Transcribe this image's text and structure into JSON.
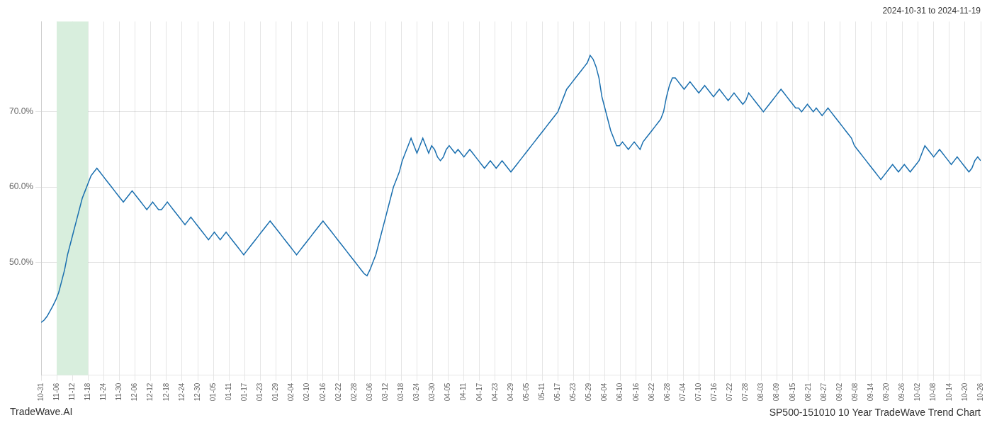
{
  "chart_data": {
    "type": "line",
    "title": "SP500-151010 10 Year TradeWave Trend Chart",
    "subtitle": "2024-10-31 to 2024-11-19",
    "annotations": [
      "TradeWave.AI"
    ],
    "color": "#1a6faf",
    "grid": true,
    "x": [
      0,
      1,
      2,
      3,
      4,
      5,
      6,
      7,
      8,
      9,
      10,
      11,
      12,
      13,
      14,
      15,
      16,
      17,
      18,
      19,
      20,
      21,
      22,
      23,
      24,
      25,
      26,
      27,
      28,
      29,
      30,
      31,
      32,
      33,
      34,
      35,
      36,
      37,
      38,
      39,
      40,
      41,
      42,
      43,
      44,
      45,
      46,
      47,
      48,
      49,
      50,
      51,
      52,
      53,
      54,
      55,
      56,
      57,
      58,
      59,
      60,
      61,
      62,
      63,
      64,
      65,
      66,
      67,
      68,
      69,
      70,
      71,
      72,
      73,
      74,
      75,
      76,
      77,
      78,
      79,
      80,
      81,
      82,
      83,
      84,
      85,
      86,
      87,
      88,
      89,
      90,
      91,
      92,
      93,
      94,
      95,
      96,
      97,
      98,
      99,
      100,
      101,
      102,
      103,
      104,
      105,
      106,
      107,
      108,
      109,
      110,
      111,
      112,
      113,
      114,
      115,
      116,
      117,
      118,
      119,
      120,
      121,
      122,
      123,
      124,
      125,
      126,
      127,
      128,
      129,
      130,
      131,
      132,
      133,
      134,
      135,
      136,
      137,
      138,
      139,
      140,
      141,
      142,
      143,
      144,
      145,
      146,
      147,
      148,
      149,
      150,
      151,
      152,
      153,
      154,
      155,
      156,
      157,
      158,
      159,
      160,
      161,
      162,
      163,
      164,
      165,
      166,
      167,
      168,
      169,
      170,
      171,
      172,
      173,
      174,
      175,
      176,
      177,
      178,
      179,
      180,
      181,
      182,
      183,
      184,
      185,
      186,
      187,
      188,
      189,
      190,
      191,
      192,
      193,
      194,
      195,
      196,
      197,
      198,
      199,
      200,
      201,
      202,
      203,
      204,
      205,
      206,
      207,
      208,
      209,
      210,
      211,
      212,
      213,
      214,
      215,
      216,
      217,
      218,
      219,
      220,
      221,
      222,
      223,
      224,
      225,
      226,
      227,
      228,
      229,
      230,
      231,
      232,
      233,
      234,
      235,
      236,
      237,
      238,
      239,
      240,
      241,
      242,
      243,
      244,
      245,
      246,
      247,
      248,
      249,
      250,
      251,
      252,
      253,
      254,
      255,
      256,
      257,
      258,
      259,
      260,
      261,
      262,
      263,
      264,
      265,
      266,
      267,
      268,
      269,
      270,
      271,
      272,
      273,
      274,
      275,
      276,
      277,
      278,
      279,
      280,
      281,
      282,
      283,
      284,
      285,
      286,
      287,
      288,
      289,
      290,
      291,
      292,
      293,
      294,
      295,
      296,
      297,
      298,
      299,
      300,
      301,
      302,
      303,
      304,
      305,
      306,
      307,
      308,
      309,
      310,
      311,
      312,
      313,
      314,
      315,
      316,
      317,
      318,
      319,
      320
    ],
    "values": [
      42.0,
      42.3,
      42.8,
      43.5,
      44.2,
      45.0,
      46.0,
      47.5,
      49.0,
      51.0,
      52.5,
      54.0,
      55.5,
      57.0,
      58.5,
      59.5,
      60.5,
      61.5,
      62.0,
      62.5,
      62.0,
      61.5,
      61.0,
      60.5,
      60.0,
      59.5,
      59.0,
      58.5,
      58.0,
      58.5,
      59.0,
      59.5,
      59.0,
      58.5,
      58.0,
      57.5,
      57.0,
      57.5,
      58.0,
      57.5,
      57.0,
      57.0,
      57.5,
      58.0,
      57.5,
      57.0,
      56.5,
      56.0,
      55.5,
      55.0,
      55.5,
      56.0,
      55.5,
      55.0,
      54.5,
      54.0,
      53.5,
      53.0,
      53.5,
      54.0,
      53.5,
      53.0,
      53.5,
      54.0,
      53.5,
      53.0,
      52.5,
      52.0,
      51.5,
      51.0,
      51.5,
      52.0,
      52.5,
      53.0,
      53.5,
      54.0,
      54.5,
      55.0,
      55.5,
      55.0,
      54.5,
      54.0,
      53.5,
      53.0,
      52.5,
      52.0,
      51.5,
      51.0,
      51.5,
      52.0,
      52.5,
      53.0,
      53.5,
      54.0,
      54.5,
      55.0,
      55.5,
      55.0,
      54.5,
      54.0,
      53.5,
      53.0,
      52.5,
      52.0,
      51.5,
      51.0,
      50.5,
      50.0,
      49.5,
      49.0,
      48.5,
      48.2,
      49.0,
      50.0,
      51.0,
      52.5,
      54.0,
      55.5,
      57.0,
      58.5,
      60.0,
      61.0,
      62.0,
      63.5,
      64.5,
      65.5,
      66.5,
      65.5,
      64.5,
      65.5,
      66.5,
      65.5,
      64.5,
      65.5,
      65.0,
      64.0,
      63.5,
      64.0,
      65.0,
      65.5,
      65.0,
      64.5,
      65.0,
      64.5,
      64.0,
      64.5,
      65.0,
      64.5,
      64.0,
      63.5,
      63.0,
      62.5,
      63.0,
      63.5,
      63.0,
      62.5,
      63.0,
      63.5,
      63.0,
      62.5,
      62.0,
      62.5,
      63.0,
      63.5,
      64.0,
      64.5,
      65.0,
      65.5,
      66.0,
      66.5,
      67.0,
      67.5,
      68.0,
      68.5,
      69.0,
      69.5,
      70.0,
      71.0,
      72.0,
      73.0,
      73.5,
      74.0,
      74.5,
      75.0,
      75.5,
      76.0,
      76.5,
      77.5,
      77.0,
      76.0,
      74.5,
      72.0,
      70.5,
      69.0,
      67.5,
      66.5,
      65.5,
      65.5,
      66.0,
      65.5,
      65.0,
      65.5,
      66.0,
      65.5,
      65.0,
      66.0,
      66.5,
      67.0,
      67.5,
      68.0,
      68.5,
      69.0,
      70.0,
      72.0,
      73.5,
      74.5,
      74.5,
      74.0,
      73.5,
      73.0,
      73.5,
      74.0,
      73.5,
      73.0,
      72.5,
      73.0,
      73.5,
      73.0,
      72.5,
      72.0,
      72.5,
      73.0,
      72.5,
      72.0,
      71.5,
      72.0,
      72.5,
      72.0,
      71.5,
      71.0,
      71.5,
      72.5,
      72.0,
      71.5,
      71.0,
      70.5,
      70.0,
      70.5,
      71.0,
      71.5,
      72.0,
      72.5,
      73.0,
      72.5,
      72.0,
      71.5,
      71.0,
      70.5,
      70.5,
      70.0,
      70.5,
      71.0,
      70.5,
      70.0,
      70.5,
      70.0,
      69.5,
      70.0,
      70.5,
      70.0,
      69.5,
      69.0,
      68.5,
      68.0,
      67.5,
      67.0,
      66.5,
      65.5,
      65.0,
      64.5,
      64.0,
      63.5,
      63.0,
      62.5,
      62.0,
      61.5,
      61.0,
      61.5,
      62.0,
      62.5,
      63.0,
      62.5,
      62.0,
      62.5,
      63.0,
      62.5,
      62.0,
      62.5,
      63.0,
      63.5,
      64.5,
      65.5,
      65.0,
      64.5,
      64.0,
      64.5,
      65.0,
      64.5,
      64.0,
      63.5,
      63.0,
      63.5,
      64.0,
      63.5,
      63.0,
      62.5,
      62.0,
      62.5,
      63.5,
      64.0,
      63.5
    ],
    "xlim": [
      0,
      320
    ],
    "xticks": [
      {
        "value": 0,
        "label": "10-31"
      },
      {
        "value": 5.3333,
        "label": "11-06"
      },
      {
        "value": 10.6667,
        "label": "11-12"
      },
      {
        "value": 16,
        "label": "11-18"
      },
      {
        "value": 21.3333,
        "label": "11-24"
      },
      {
        "value": 26.6667,
        "label": "11-30"
      },
      {
        "value": 32,
        "label": "12-06"
      },
      {
        "value": 37.3333,
        "label": "12-12"
      },
      {
        "value": 42.6667,
        "label": "12-18"
      },
      {
        "value": 48,
        "label": "12-24"
      },
      {
        "value": 53.3333,
        "label": "12-30"
      },
      {
        "value": 58.6667,
        "label": "01-05"
      },
      {
        "value": 64,
        "label": "01-11"
      },
      {
        "value": 69.3333,
        "label": "01-17"
      },
      {
        "value": 74.6667,
        "label": "01-23"
      },
      {
        "value": 80,
        "label": "01-29"
      },
      {
        "value": 85.3333,
        "label": "02-04"
      },
      {
        "value": 90.6667,
        "label": "02-10"
      },
      {
        "value": 96,
        "label": "02-16"
      },
      {
        "value": 101.3333,
        "label": "02-22"
      },
      {
        "value": 106.6667,
        "label": "02-28"
      },
      {
        "value": 112,
        "label": "03-06"
      },
      {
        "value": 117.3333,
        "label": "03-12"
      },
      {
        "value": 122.6667,
        "label": "03-18"
      },
      {
        "value": 128,
        "label": "03-24"
      },
      {
        "value": 133.3333,
        "label": "03-30"
      },
      {
        "value": 138.6667,
        "label": "04-05"
      },
      {
        "value": 144,
        "label": "04-11"
      },
      {
        "value": 149.3333,
        "label": "04-17"
      },
      {
        "value": 154.6667,
        "label": "04-23"
      },
      {
        "value": 160,
        "label": "04-29"
      },
      {
        "value": 165.3333,
        "label": "05-05"
      },
      {
        "value": 170.6667,
        "label": "05-11"
      },
      {
        "value": 176,
        "label": "05-17"
      },
      {
        "value": 181.3333,
        "label": "05-23"
      },
      {
        "value": 186.6667,
        "label": "05-29"
      },
      {
        "value": 192,
        "label": "06-04"
      },
      {
        "value": 197.3333,
        "label": "06-10"
      },
      {
        "value": 202.6667,
        "label": "06-16"
      },
      {
        "value": 208,
        "label": "06-22"
      },
      {
        "value": 213.3333,
        "label": "06-28"
      },
      {
        "value": 218.6667,
        "label": "07-04"
      },
      {
        "value": 224,
        "label": "07-10"
      },
      {
        "value": 229.3333,
        "label": "07-16"
      },
      {
        "value": 234.6667,
        "label": "07-22"
      },
      {
        "value": 240,
        "label": "07-28"
      },
      {
        "value": 245.3333,
        "label": "08-03"
      },
      {
        "value": 250.6667,
        "label": "08-09"
      },
      {
        "value": 256,
        "label": "08-15"
      },
      {
        "value": 261.3333,
        "label": "08-21"
      },
      {
        "value": 266.6667,
        "label": "08-27"
      },
      {
        "value": 272,
        "label": "09-02"
      },
      {
        "value": 277.3333,
        "label": "09-08"
      },
      {
        "value": 282.6667,
        "label": "09-14"
      },
      {
        "value": 288,
        "label": "09-20"
      },
      {
        "value": 293.3333,
        "label": "09-26"
      },
      {
        "value": 298.6667,
        "label": "10-02"
      },
      {
        "value": 304,
        "label": "10-08"
      },
      {
        "value": 309.3333,
        "label": "10-14"
      },
      {
        "value": 314.6667,
        "label": "10-20"
      },
      {
        "value": 320,
        "label": "10-26"
      }
    ],
    "ylim": [
      35.0,
      82.0
    ],
    "yticks": [
      {
        "value": 50.0,
        "label": "50.0%"
      },
      {
        "value": 60.0,
        "label": "60.0%"
      },
      {
        "value": 70.0,
        "label": "70.0%"
      }
    ],
    "highlight": {
      "from": "11-06",
      "to": "11-18",
      "color": "#d8eedd"
    }
  }
}
